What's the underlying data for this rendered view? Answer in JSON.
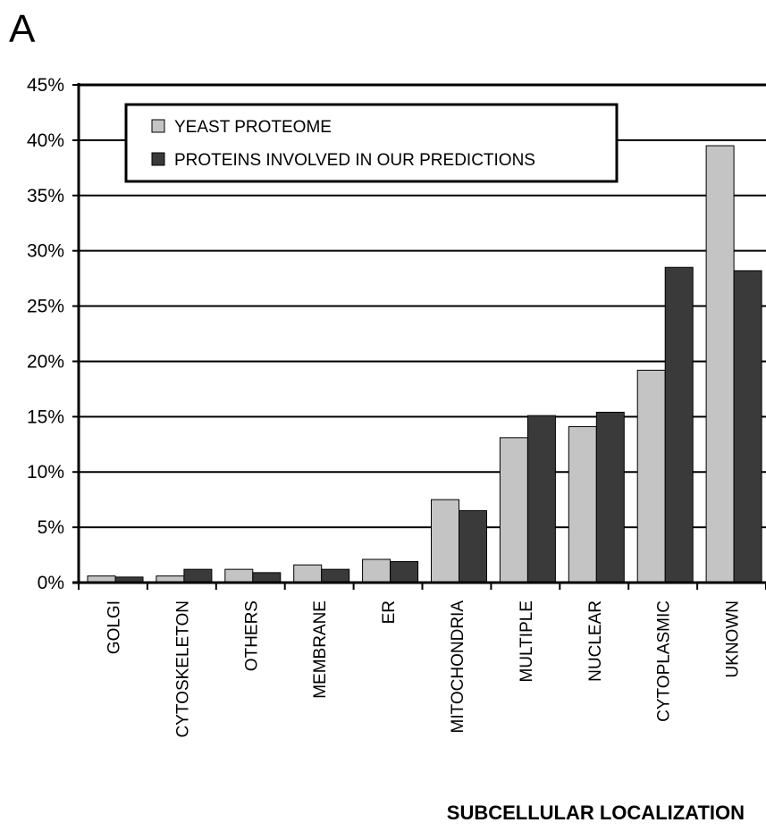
{
  "panel_label": "A",
  "colors": {
    "yeast": "#c4c4c4",
    "predictions": "#3a3a3a",
    "axis": "#000000"
  },
  "chart_data": {
    "type": "bar",
    "title": "",
    "xlabel": "SUBCELLULAR LOCALIZATION",
    "ylabel": "",
    "ylim": [
      0,
      45
    ],
    "yticks": [
      "0%",
      "5%",
      "10%",
      "15%",
      "20%",
      "25%",
      "30%",
      "35%",
      "40%",
      "45%"
    ],
    "grid": true,
    "legend_position": "top-left",
    "categories": [
      "GOLGI",
      "CYTOSKELETON",
      "OTHERS",
      "MEMBRANE",
      "ER",
      "MITOCHONDRIA",
      "MULTIPLE",
      "NUCLEAR",
      "CYTOPLASMIC",
      "UKNOWN"
    ],
    "series": [
      {
        "name": "YEAST PROTEOME",
        "values": [
          0.6,
          0.6,
          1.2,
          1.6,
          2.1,
          7.5,
          13.1,
          14.1,
          19.2,
          39.5
        ]
      },
      {
        "name": "PROTEINS INVOLVED IN OUR PREDICTIONS",
        "values": [
          0.5,
          1.2,
          0.9,
          1.2,
          1.9,
          6.5,
          15.1,
          15.4,
          28.5,
          28.2
        ]
      }
    ]
  }
}
